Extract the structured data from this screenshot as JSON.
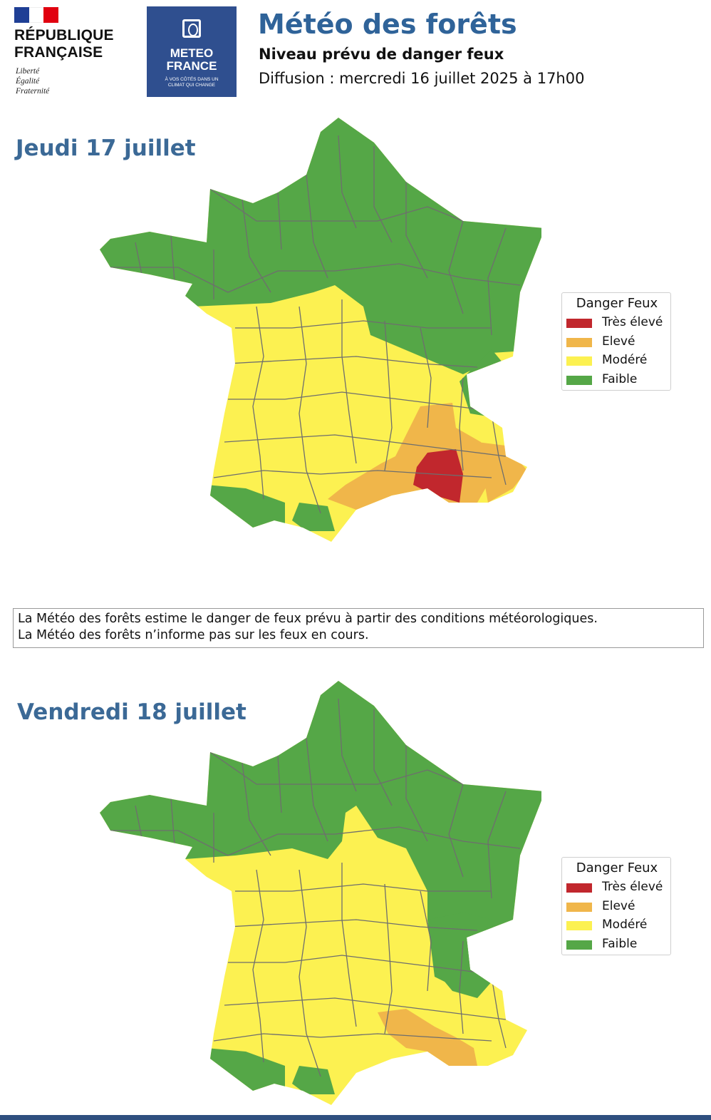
{
  "header": {
    "republic": {
      "line1": "RÉPUBLIQUE",
      "line2": "FRANÇAISE",
      "motto1": "Liberté",
      "motto2": "Égalité",
      "motto3": "Fraternité"
    },
    "meteo_logo": {
      "line1": "METEO",
      "line2": "FRANCE",
      "tagline1": "À VOS CÔTÉS DANS UN",
      "tagline2": "CLIMAT QUI CHANGE"
    },
    "title": "Météo des forêts",
    "subtitle": "Niveau prévu de danger feux",
    "diffusion": "Diffusion : mercredi 16 juillet 2025 à 17h00"
  },
  "legend": {
    "title": "Danger Feux",
    "levels": [
      {
        "label": "Très élevé",
        "color": "#c1272d"
      },
      {
        "label": "Elevé",
        "color": "#f0b64a"
      },
      {
        "label": "Modéré",
        "color": "#fcf151"
      },
      {
        "label": "Faible",
        "color": "#55a747"
      }
    ]
  },
  "maps": [
    {
      "day": "Jeudi 17 juillet",
      "map_icon": "france-departments-map"
    },
    {
      "day": "Vendredi 18 juillet",
      "map_icon": "france-departments-map"
    }
  ],
  "notice": {
    "line1": "La Météo des forêts estime le danger de feux prévu à partir des conditions météorologiques.",
    "line2": "La Météo des forêts n’informe pas sur les feux en cours."
  }
}
